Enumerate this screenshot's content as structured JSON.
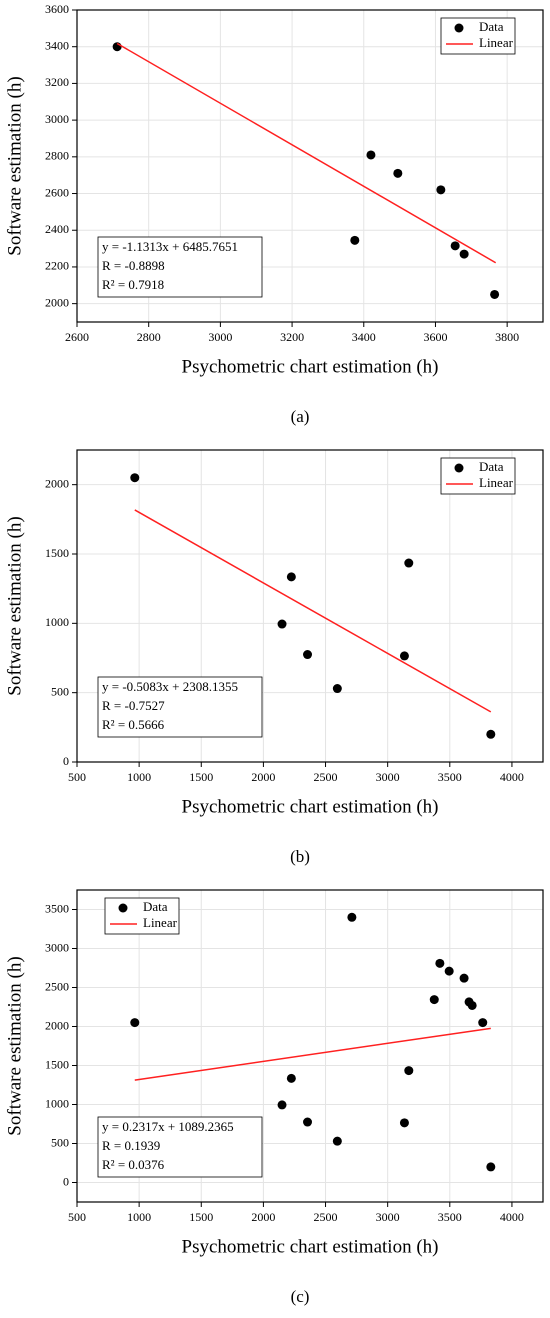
{
  "chart_data": [
    {
      "type": "scatter",
      "caption": "(a)",
      "x_label": "Psychometric chart estimation (h)",
      "y_label": "Software estimation (h)",
      "xlim": [
        2600,
        3900
      ],
      "xticks": [
        2600,
        2800,
        3000,
        3200,
        3400,
        3600,
        3800
      ],
      "ylim": [
        1900,
        3600
      ],
      "yticks": [
        2000,
        2200,
        2400,
        2600,
        2800,
        3000,
        3200,
        3400,
        3600
      ],
      "grid": true,
      "legend": "upper right",
      "annotations": [
        "y = -1.1313x + 6485.7651",
        "R = -0.8898",
        "R² = 0.7918"
      ],
      "series": [
        {
          "name": "Data",
          "color": "#000000",
          "x": [
            2712,
            3420,
            3495,
            3615,
            3375,
            3655,
            3680,
            3765
          ],
          "values": [
            3400,
            2810,
            2710,
            2620,
            2345,
            2315,
            2270,
            2050
          ]
        },
        {
          "name": "Linear",
          "color": "#ff2020",
          "x": [
            2712,
            3768
          ],
          "values": [
            3417.6,
            2223.0
          ]
        }
      ]
    },
    {
      "type": "scatter",
      "caption": "(b)",
      "x_label": "Psychometric chart estimation (h)",
      "y_label": "Software estimation (h)",
      "xlim": [
        500,
        4250
      ],
      "xticks": [
        500,
        1000,
        1500,
        2000,
        2500,
        3000,
        3500,
        4000
      ],
      "ylim": [
        0,
        2250
      ],
      "yticks": [
        0,
        500,
        1000,
        1500,
        2000
      ],
      "grid": true,
      "legend": "upper right",
      "annotations": [
        "y = -0.5083x + 2308.1355",
        "R = -0.7527",
        "R² = 0.5666"
      ],
      "series": [
        {
          "name": "Data",
          "color": "#000000",
          "x": [
            965,
            2150,
            2225,
            2355,
            2595,
            3135,
            3170,
            3830
          ],
          "values": [
            2050,
            995,
            1335,
            775,
            530,
            765,
            1435,
            200
          ]
        },
        {
          "name": "Linear",
          "color": "#ff2020",
          "x": [
            965,
            3830
          ],
          "values": [
            1817.6,
            361.3
          ]
        }
      ]
    },
    {
      "type": "scatter",
      "caption": "(c)",
      "x_label": "Psychometric chart estimation (h)",
      "y_label": "Software estimation (h)",
      "xlim": [
        500,
        4250
      ],
      "xticks": [
        500,
        1000,
        1500,
        2000,
        2500,
        3000,
        3500,
        4000
      ],
      "ylim": [
        -250,
        3750
      ],
      "yticks": [
        0,
        500,
        1000,
        1500,
        2000,
        2500,
        3000,
        3500
      ],
      "grid": true,
      "legend": "upper left",
      "annotations": [
        "y = 0.2317x + 1089.2365",
        "R = 0.1939",
        "R² = 0.0376"
      ],
      "series": [
        {
          "name": "Data",
          "color": "#000000",
          "x": [
            2712,
            3420,
            3495,
            3615,
            3375,
            3655,
            3680,
            3765,
            965,
            2150,
            2225,
            2355,
            2595,
            3135,
            3170,
            3830
          ],
          "values": [
            3400,
            2810,
            2710,
            2620,
            2345,
            2315,
            2270,
            2050,
            2050,
            995,
            1335,
            775,
            530,
            765,
            1435,
            200
          ]
        },
        {
          "name": "Linear",
          "color": "#ff2020",
          "x": [
            965,
            3830
          ],
          "values": [
            1312.8,
            1976.6
          ]
        }
      ]
    }
  ]
}
